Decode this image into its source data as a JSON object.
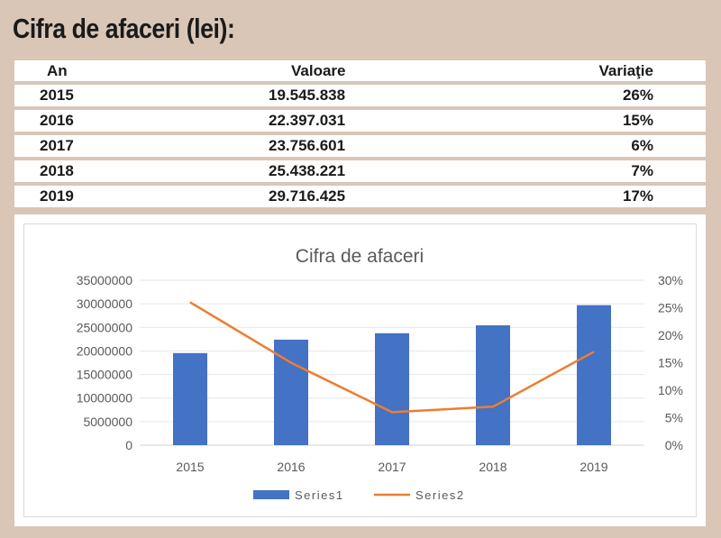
{
  "heading": "Cifra de afaceri (lei):",
  "table": {
    "headers": {
      "an": "An",
      "valoare": "Valoare",
      "variatie": "Variaţie"
    },
    "rows": [
      {
        "an": "2015",
        "valoare": "19.545.838",
        "variatie": "26%"
      },
      {
        "an": "2016",
        "valoare": "22.397.031",
        "variatie": "15%"
      },
      {
        "an": "2017",
        "valoare": "23.756.601",
        "variatie": "6%"
      },
      {
        "an": "2018",
        "valoare": "25.438.221",
        "variatie": "7%"
      },
      {
        "an": "2019",
        "valoare": "29.716.425",
        "variatie": "17%"
      }
    ]
  },
  "chart_data": {
    "type": "bar",
    "title": "Cifra de afaceri",
    "categories": [
      "2015",
      "2016",
      "2017",
      "2018",
      "2019"
    ],
    "series": [
      {
        "name": "Series1",
        "type": "bar",
        "axis": "left",
        "color": "#4472c4",
        "values": [
          19545838,
          22397031,
          23756601,
          25438221,
          29716425
        ]
      },
      {
        "name": "Series2",
        "type": "line",
        "axis": "right",
        "color": "#ed7d31",
        "values": [
          0.26,
          0.15,
          0.06,
          0.07,
          0.17
        ]
      }
    ],
    "ylim_left": [
      0,
      35000000
    ],
    "ylim_right": [
      0,
      0.3
    ],
    "yticks_left": [
      "0",
      "5000000",
      "10000000",
      "15000000",
      "20000000",
      "25000000",
      "30000000",
      "35000000"
    ],
    "yticks_right": [
      "0%",
      "5%",
      "10%",
      "15%",
      "20%",
      "25%",
      "30%"
    ],
    "grid": true,
    "legend": "bottom"
  }
}
